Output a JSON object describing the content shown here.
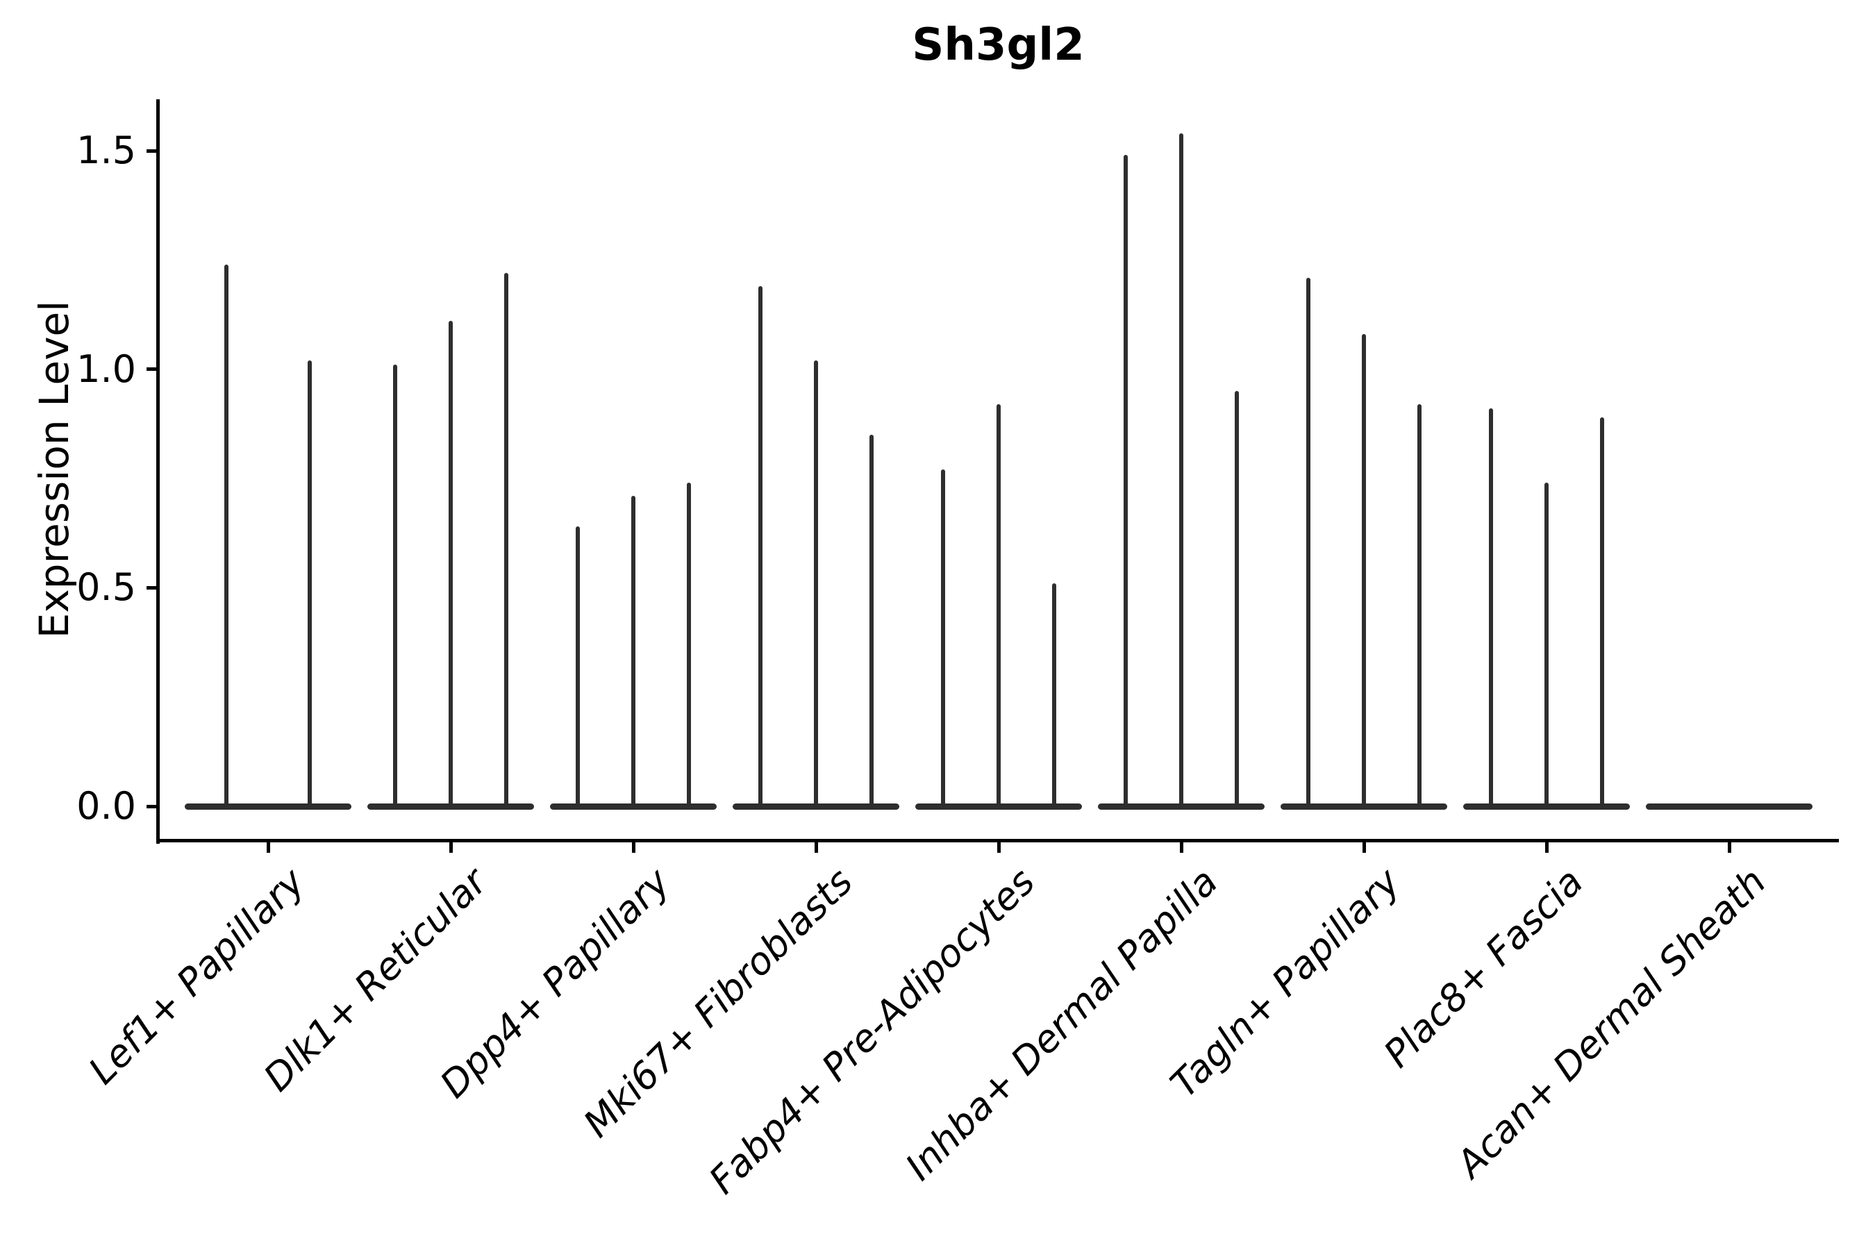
{
  "figure": {
    "title": "Sh3gl2",
    "ylabel": "Expression Level"
  },
  "chart_data": {
    "type": "violin",
    "title": "Sh3gl2",
    "xlabel": "",
    "ylabel": "Expression Level",
    "grid": false,
    "legend": "none",
    "ylim": [
      -0.08,
      1.62
    ],
    "yticks": [
      {
        "label": "0.0",
        "value": 0.0
      },
      {
        "label": "0.5",
        "value": 0.5
      },
      {
        "label": "1.0",
        "value": 1.0
      },
      {
        "label": "1.5",
        "value": 1.5
      }
    ],
    "categories": [
      "Lef1+ Papillary",
      "Dlk1+ Reticular",
      "Dpp4+ Papillary",
      "Mki67+ Fibroblasts",
      "Fabp4+ Pre-Adipocytes",
      "Inhba+ Dermal Papilla",
      "Tagln+ Papillary",
      "Plac8+ Fascia",
      "Acan+ Dermal Sheath"
    ],
    "series": [
      {
        "name": "Lef1+ Papillary",
        "violin_maxima": [
          1.24,
          1.02
        ]
      },
      {
        "name": "Dlk1+ Reticular",
        "violin_maxima": [
          1.01,
          1.11,
          1.22
        ]
      },
      {
        "name": "Dpp4+ Papillary",
        "violin_maxima": [
          0.64,
          0.71,
          0.74
        ]
      },
      {
        "name": "Mki67+ Fibroblasts",
        "violin_maxima": [
          1.19,
          1.02,
          0.85
        ]
      },
      {
        "name": "Fabp4+ Pre-Adipocytes",
        "violin_maxima": [
          0.77,
          0.92,
          0.51
        ]
      },
      {
        "name": "Inhba+ Dermal Papilla",
        "violin_maxima": [
          1.49,
          1.54,
          0.95
        ]
      },
      {
        "name": "Tagln+ Papillary",
        "violin_maxima": [
          1.21,
          1.08,
          0.92
        ]
      },
      {
        "name": "Plac8+ Fascia",
        "violin_maxima": [
          0.91,
          0.74,
          0.89
        ]
      },
      {
        "name": "Acan+ Dermal Sheath",
        "violin_maxima": []
      }
    ],
    "colors": {
      "violin": "#2e2e2e",
      "axis": "#000000",
      "text": "#000000",
      "background": "#ffffff"
    }
  }
}
